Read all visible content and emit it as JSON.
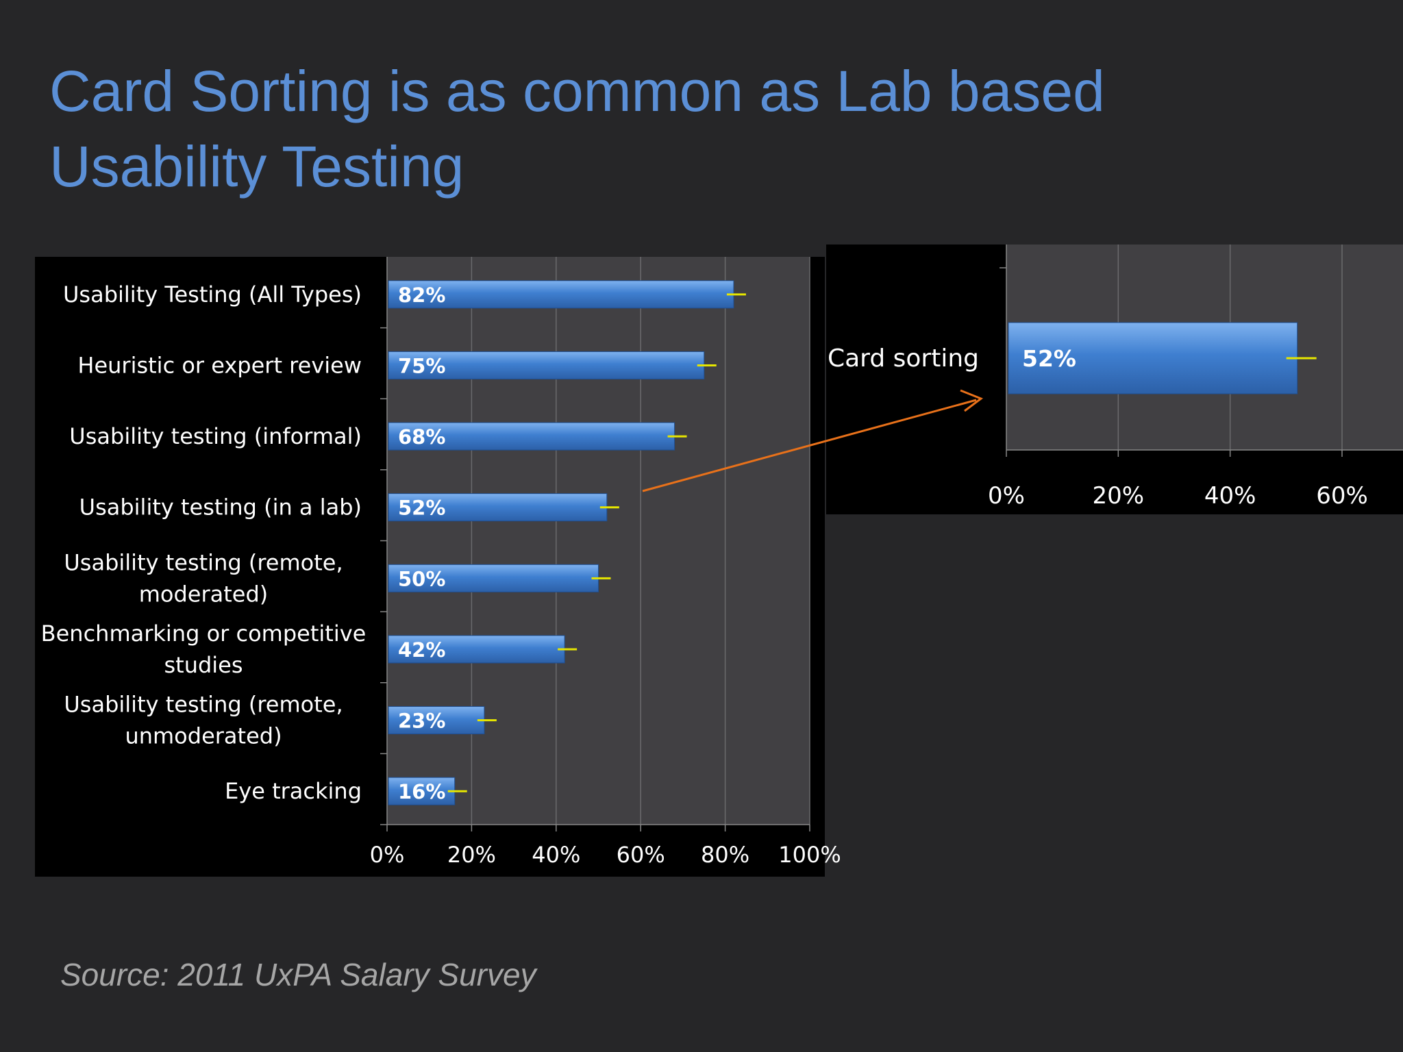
{
  "slide": {
    "title_line1": "Card Sorting is as common as Lab based",
    "title_line2": "Usability Testing",
    "source": "Source: 2011 UxPA Salary Survey"
  },
  "colors": {
    "background": "#262628",
    "title": "#5b8fd6",
    "bar": "#3f7fd0",
    "plot_area": "#414043",
    "error_bar": "#e6e600",
    "arrow": "#e8711a",
    "source_text": "#a6a6a6"
  },
  "chart_data": [
    {
      "type": "bar",
      "orientation": "horizontal",
      "categories": [
        [
          "Usability Testing (All Types)"
        ],
        [
          "Heuristic or expert review"
        ],
        [
          "Usability testing (informal)"
        ],
        [
          "Usability testing (in a lab)"
        ],
        [
          "Usability testing (remote,",
          "moderated)"
        ],
        [
          "Benchmarking or competitive",
          "studies"
        ],
        [
          "Usability testing (remote,",
          "unmoderated)"
        ],
        [
          "Eye tracking"
        ]
      ],
      "values": [
        82,
        75,
        68,
        52,
        50,
        42,
        23,
        16
      ],
      "data_labels": [
        "82%",
        "75%",
        "68%",
        "52%",
        "50%",
        "42%",
        "23%",
        "16%"
      ],
      "xlim": [
        0,
        100
      ],
      "xticks": [
        "0%",
        "20%",
        "40%",
        "60%",
        "80%",
        "100%"
      ],
      "grid": true,
      "error_bars": true
    },
    {
      "type": "bar",
      "orientation": "horizontal",
      "categories": [
        [
          "Card sorting"
        ]
      ],
      "values": [
        52
      ],
      "data_labels": [
        "52%"
      ],
      "xticks": [
        "0%",
        "20%",
        "40%",
        "60%"
      ],
      "grid": true,
      "error_bars": true
    }
  ]
}
